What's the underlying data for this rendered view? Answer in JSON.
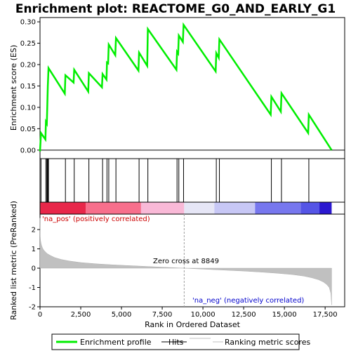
{
  "chart_data": {
    "type": "line",
    "title": "Enrichment plot: REACTOME_G0_AND_EARLY_G1",
    "top_panel": {
      "ylabel": "Enrichment score (ES)",
      "ylim": [
        -0.02,
        0.31
      ],
      "yticks": [
        0.0,
        0.05,
        0.1,
        0.15,
        0.2,
        0.25,
        0.3
      ],
      "ytick_labels": [
        "0.00",
        "0.05",
        "0.10",
        "0.15",
        "0.20",
        "0.25",
        "0.30"
      ],
      "series": [
        {
          "name": "Enrichment profile",
          "color": "#00ee00",
          "x": [
            0,
            60,
            330,
            360,
            420,
            450,
            480,
            520,
            1520,
            1560,
            2060,
            2100,
            2960,
            3000,
            3800,
            3840,
            4080,
            4110,
            4180,
            4220,
            4620,
            4660,
            6040,
            6080,
            6580,
            6620,
            8370,
            8410,
            8480,
            8520,
            8770,
            8810,
            10780,
            10820,
            10970,
            11010,
            14160,
            14200,
            14780,
            14820,
            16460,
            16500,
            17900
          ],
          "y": [
            -0.003,
            0.04,
            0.025,
            0.066,
            0.062,
            0.105,
            0.15,
            0.192,
            0.132,
            0.175,
            0.158,
            0.188,
            0.137,
            0.18,
            0.147,
            0.178,
            0.165,
            0.205,
            0.203,
            0.247,
            0.222,
            0.262,
            0.186,
            0.228,
            0.197,
            0.283,
            0.188,
            0.23,
            0.226,
            0.268,
            0.253,
            0.293,
            0.184,
            0.227,
            0.216,
            0.259,
            0.083,
            0.125,
            0.09,
            0.133,
            0.04,
            0.083,
            0.0
          ]
        }
      ]
    },
    "hits": {
      "name": "Hits",
      "x": [
        60,
        360,
        420,
        450,
        480,
        520,
        1560,
        2100,
        3000,
        3840,
        4110,
        4220,
        4660,
        6080,
        6620,
        8410,
        8520,
        8810,
        10820,
        11010,
        14200,
        14820,
        16500
      ]
    },
    "color_bar": {
      "segments": [
        {
          "from": 0,
          "to": 2800,
          "color": "#e8274a"
        },
        {
          "from": 2800,
          "to": 6200,
          "color": "#f76f8c"
        },
        {
          "from": 6200,
          "to": 8849,
          "color": "#f9b9d7"
        },
        {
          "from": 8849,
          "to": 10700,
          "color": "#e6e6f6"
        },
        {
          "from": 10700,
          "to": 13200,
          "color": "#c7c7f5"
        },
        {
          "from": 13200,
          "to": 16000,
          "color": "#7777ee"
        },
        {
          "from": 16000,
          "to": 17150,
          "color": "#5555e6"
        },
        {
          "from": 17150,
          "to": 17900,
          "color": "#2b18d0"
        }
      ]
    },
    "bottom_panel": {
      "ylabel": "Ranked list metric (PreRanked)",
      "xlabel": "Rank in Ordered Dataset",
      "ylim": [
        -2.0,
        2.8
      ],
      "yticks": [
        -2,
        -1,
        0,
        1,
        2
      ],
      "ytick_labels": [
        "-2",
        "-1",
        "0",
        "1",
        "2"
      ],
      "series": [
        {
          "name": "Ranking metric scores",
          "color": "#c0c0c0",
          "x": [
            0,
            10,
            30,
            60,
            100,
            150,
            220,
            320,
            450,
            650,
            900,
            1300,
            1800,
            2500,
            3500,
            4500,
            5500,
            6500,
            7500,
            8300,
            8849,
            9500,
            10500,
            11500,
            12500,
            13500,
            14500,
            15500,
            16200,
            16700,
            17100,
            17400,
            17600,
            17750,
            17850,
            17900
          ],
          "y": [
            2.6,
            1.7,
            1.45,
            1.3,
            1.17,
            1.05,
            0.95,
            0.85,
            0.75,
            0.65,
            0.55,
            0.45,
            0.37,
            0.29,
            0.22,
            0.17,
            0.13,
            0.09,
            0.05,
            0.02,
            0.0,
            -0.03,
            -0.07,
            -0.11,
            -0.15,
            -0.2,
            -0.26,
            -0.33,
            -0.41,
            -0.5,
            -0.6,
            -0.72,
            -0.85,
            -1.0,
            -1.3,
            -1.9
          ]
        }
      ]
    },
    "xlim": [
      0,
      18700
    ],
    "xticks": [
      0,
      2500,
      5000,
      7500,
      10000,
      12500,
      15000,
      17500
    ],
    "xtick_labels": [
      "0",
      "2,500",
      "5,000",
      "7,500",
      "10,000",
      "12,500",
      "15,000",
      "17,500"
    ],
    "zero_cross": 8849,
    "annotations": {
      "pos_label": "'na_pos' (positively correlated)",
      "neg_label": "'na_neg' (negatively correlated)",
      "zero_cross_label": "Zero cross at 8849",
      "pos_color": "#cc0000",
      "neg_color": "#0000cc"
    },
    "legend": {
      "placement": "bottom",
      "items": [
        {
          "label": "Enrichment profile",
          "color": "#00ee00",
          "kind": "thick-line"
        },
        {
          "label": "Hits",
          "color": "#000000",
          "kind": "line"
        },
        {
          "label": "Ranking metric scores",
          "color": "#c0c0c0",
          "kind": "line"
        }
      ]
    }
  }
}
